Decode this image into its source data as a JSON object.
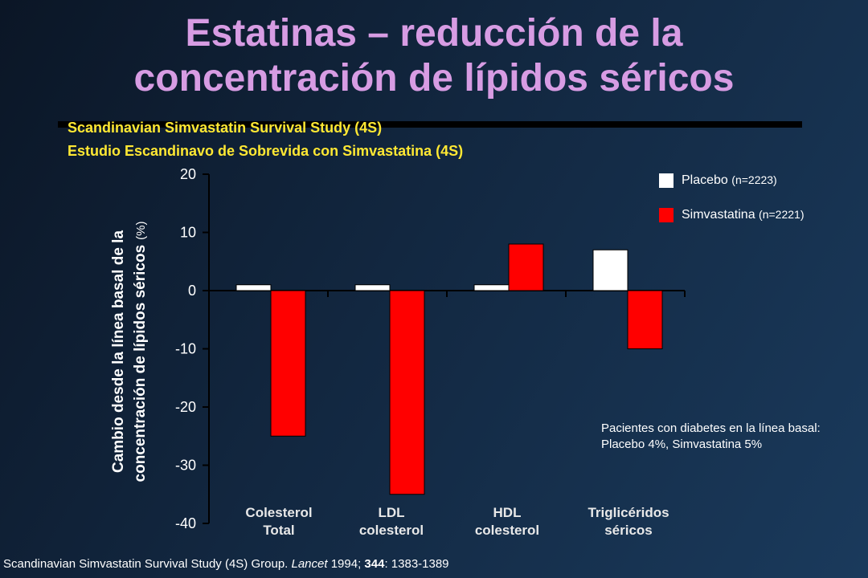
{
  "title": {
    "line1": "Estatinas – reducción de la",
    "line2": "concentración de lípidos séricos"
  },
  "subtitle": {
    "line1": "Scandinavian Simvastatin Survival Study (4S)",
    "line2": "Estudio Escandinavo de Sobrevida con Simvastatina (4S)"
  },
  "legend": {
    "placebo": {
      "label": "Placebo",
      "detail": "(n=2223)"
    },
    "simvastatina": {
      "label": "Simvastatina",
      "detail": "(n=2221)"
    }
  },
  "note": {
    "line1": "Pacientes con diabetes en la línea basal:",
    "line2": "Placebo 4%, Simvastatina 5%"
  },
  "citation": {
    "prefix": "Scandinavian Simvastatin Survival Study (4S) Group. ",
    "journal": "Lancet",
    "year": " 1994; ",
    "volume": "344",
    "pages": ": 1383-1389"
  },
  "colors": {
    "placebo": "#ffffff",
    "simvastatina": "#ff0000",
    "title": "#d79ce3",
    "subtitle": "#ffe833"
  },
  "chart_data": {
    "type": "bar",
    "categories": [
      [
        "Colesterol",
        "Total"
      ],
      [
        "LDL",
        "colesterol"
      ],
      [
        "HDL",
        "colesterol"
      ],
      [
        "Triglicéridos",
        "séricos"
      ]
    ],
    "series": [
      {
        "name": "Placebo (n=2223)",
        "values": [
          1,
          1,
          1,
          7
        ],
        "color": "#ffffff"
      },
      {
        "name": "Simvastatina (n=2221)",
        "values": [
          -25,
          -35,
          8,
          -10
        ],
        "color": "#ff0000"
      }
    ],
    "ylabel": {
      "line1": "Cambio desde la línea basal de la",
      "line2": "concentración de lípidos séricos",
      "unit": "(%)"
    },
    "ylim": [
      -40,
      20
    ],
    "yticks": [
      20,
      10,
      0,
      -10,
      -20,
      -30,
      -40
    ],
    "grid": false,
    "legend_position": "top-right"
  }
}
